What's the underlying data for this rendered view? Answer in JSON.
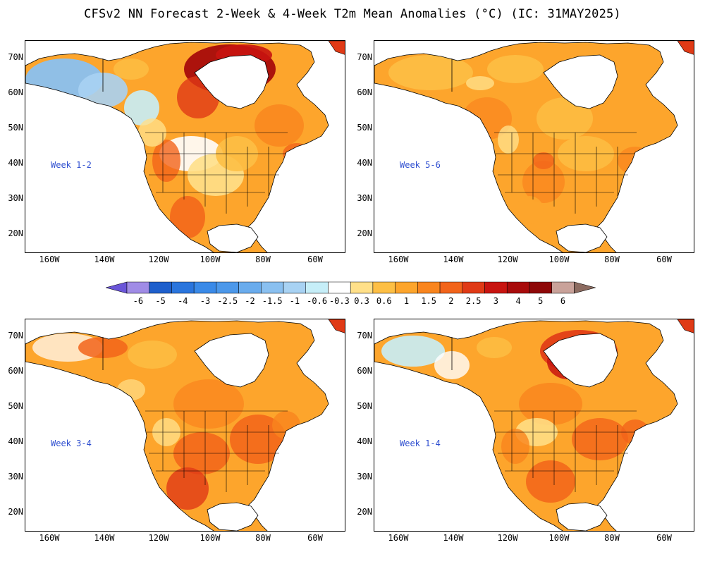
{
  "title": "CFSv2 NN Forecast 2-Week & 4-Week T2m Mean Anomalies (°C) (IC: 31MAY2025)",
  "lat_labels": [
    "70N",
    "60N",
    "50N",
    "40N",
    "30N",
    "20N"
  ],
  "lon_labels": [
    "160W",
    "140W",
    "120W",
    "100W",
    "80W",
    "60W"
  ],
  "panels": [
    {
      "id": "week12",
      "label": "Week 1-2",
      "intensity": "strong-hudson",
      "alaska": "cool"
    },
    {
      "id": "week56",
      "label": "Week 5-6",
      "intensity": "moderate",
      "alaska": "warm"
    },
    {
      "id": "week34",
      "label": "Week 3-4",
      "intensity": "moderate-plus",
      "alaska": "warm"
    },
    {
      "id": "week14",
      "label": "Week 1-4",
      "intensity": "strong-hudson",
      "alaska": "slightly-cool"
    }
  ],
  "colorbar": {
    "labels": [
      "-6",
      "-5",
      "-4",
      "-3",
      "-2.5",
      "-2",
      "-1.5",
      "-1",
      "-0.6",
      "-0.3",
      "0.3",
      "0.6",
      "1",
      "1.5",
      "2",
      "2.5",
      "3",
      "4",
      "5",
      "6"
    ],
    "colors": [
      "#a08ce6",
      "#1e5fcc",
      "#2a75dd",
      "#3a8ae8",
      "#4c98ea",
      "#6aaced",
      "#8ac0f0",
      "#a8d2f3",
      "#c6eef8",
      "#ffffff",
      "#ffe089",
      "#fdbf45",
      "#fda52c",
      "#f9851e",
      "#f2641a",
      "#e03a16",
      "#c81410",
      "#a80b0b",
      "#8e0808",
      "#c9a29a"
    ]
  }
}
